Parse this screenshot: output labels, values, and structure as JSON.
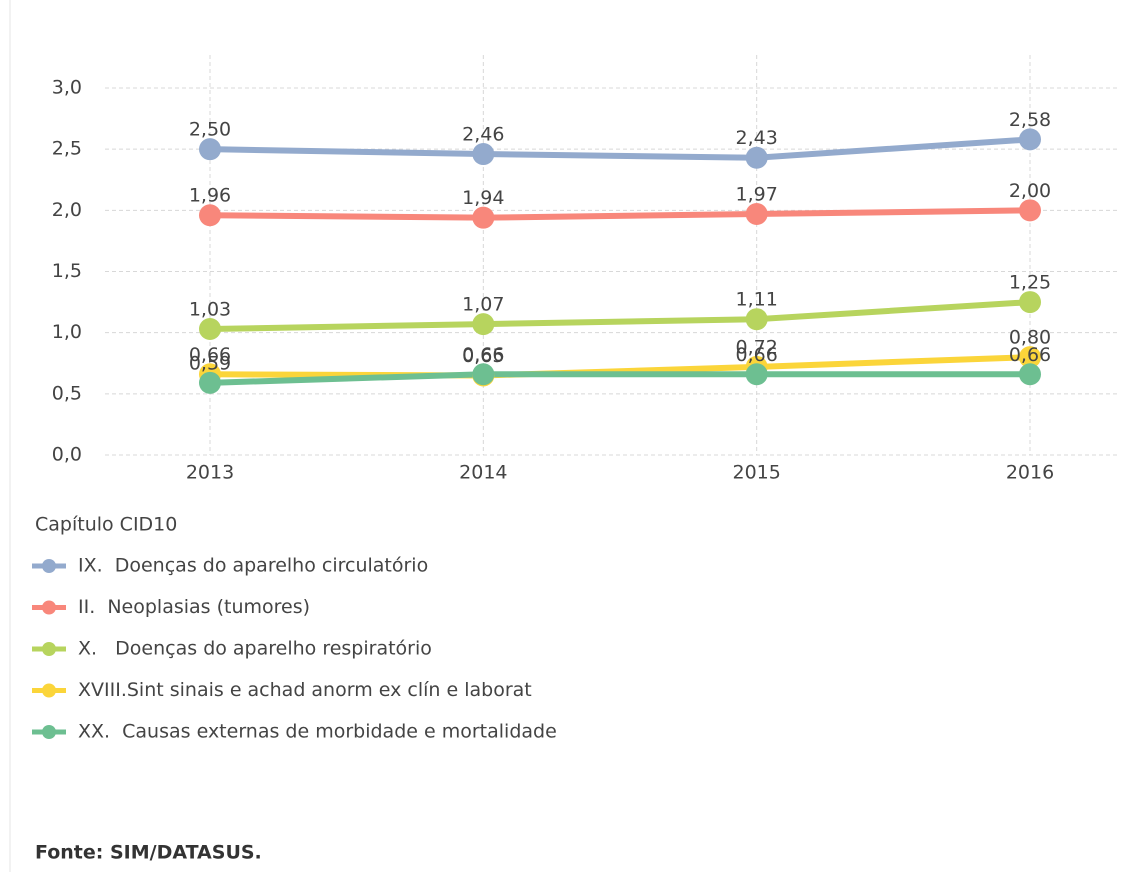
{
  "chart_data": {
    "type": "line",
    "categories": [
      "2013",
      "2014",
      "2015",
      "2016"
    ],
    "series": [
      {
        "name": "IX.  Doenças do aparelho circulatório",
        "color": "#93aacd",
        "values": [
          2.5,
          2.46,
          2.43,
          2.58
        ],
        "value_labels": [
          "2,50",
          "2,46",
          "2,43",
          "2,58"
        ]
      },
      {
        "name": "II.  Neoplasias (tumores)",
        "color": "#f8877b",
        "values": [
          1.96,
          1.94,
          1.97,
          2.0
        ],
        "value_labels": [
          "1,96",
          "1,94",
          "1,97",
          "2,00"
        ]
      },
      {
        "name": "X.   Doenças do aparelho respiratório",
        "color": "#b7d45e",
        "values": [
          1.03,
          1.07,
          1.11,
          1.25
        ],
        "value_labels": [
          "1,03",
          "1,07",
          "1,11",
          "1,25"
        ]
      },
      {
        "name": "XVIII.Sint sinais e achad anorm ex clín e laborat",
        "color": "#fbd53a",
        "values": [
          0.66,
          0.65,
          0.72,
          0.8
        ],
        "value_labels": [
          "0,66",
          "0,65",
          "0,72",
          "0,80"
        ]
      },
      {
        "name": "XX.  Causas externas de morbidade e mortalidade",
        "color": "#6dbf91",
        "values": [
          0.59,
          0.66,
          0.66,
          0.66
        ],
        "value_labels": [
          "0,59",
          "0,66",
          "0,66",
          "0,66"
        ]
      }
    ],
    "ylim": [
      0,
      3
    ],
    "yticks": [
      {
        "value": 0,
        "label": "0,0"
      },
      {
        "value": 0.5,
        "label": "0,5"
      },
      {
        "value": 1,
        "label": "1,0"
      },
      {
        "value": 1.5,
        "label": "1,5"
      },
      {
        "value": 2,
        "label": "2,0"
      },
      {
        "value": 2.5,
        "label": "2,5"
      },
      {
        "value": 3,
        "label": "3,0"
      }
    ],
    "grid": true,
    "legend_title": "Capítulo CID10",
    "source": "Fonte: SIM/DATASUS."
  }
}
